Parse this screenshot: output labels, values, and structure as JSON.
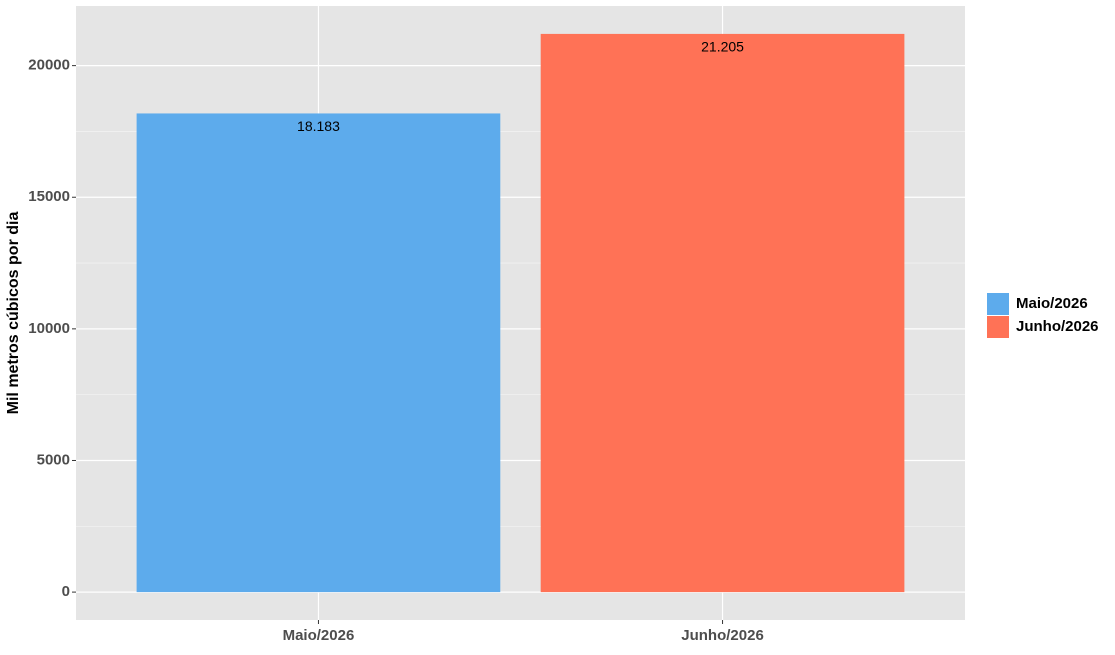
{
  "chart_data": {
    "type": "bar",
    "y_label": "Mil metros cúbicos por dia",
    "categories": [
      "Maio/2026",
      "Junho/2026"
    ],
    "values": [
      18183,
      21205
    ],
    "value_labels": [
      "18.183",
      "21.205"
    ],
    "colors": [
      "#5DABEC",
      "#FF7256"
    ],
    "ylim": [
      -1060,
      22265
    ],
    "yticks": [
      0,
      5000,
      10000,
      15000,
      20000
    ],
    "grid": true,
    "legend": "right"
  }
}
